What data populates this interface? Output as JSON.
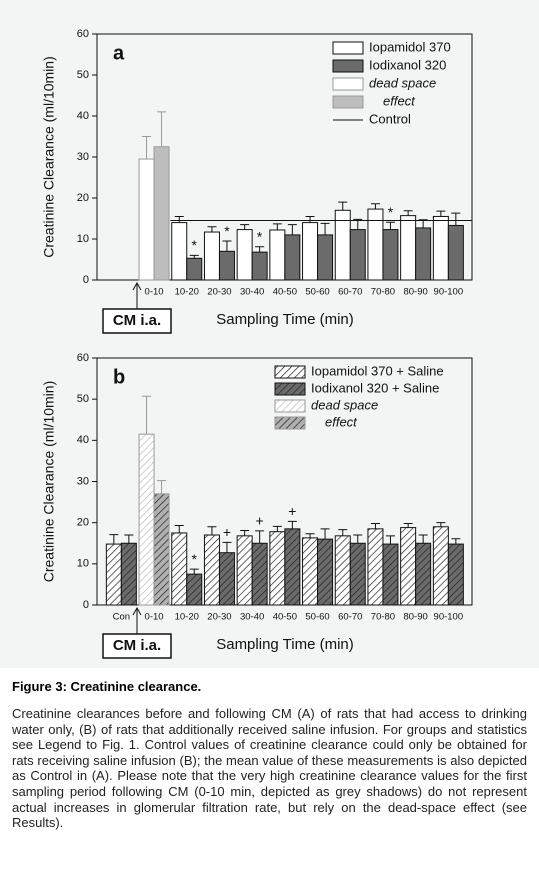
{
  "figure": {
    "title": "Figure 3: Creatinine clearance.",
    "caption": "Creatinine clearances before and following CM (A) of rats that had access to drinking water only, (B) of rats that additionally received saline infusion. For groups and statistics see Legend to Fig. 1. Control values of creatinine clearance could only be obtained for rats receiving saline infusion (B); the mean value of these measurements is also depicted as Control in (A). Please note that the very high creatinine clearance values for the first sampling period following CM (0-10 min, depicted as grey shadows) do not represent actual increases in glomerular filtration rate, but rely on the dead-space effect (see Results)."
  },
  "chart_data": [
    {
      "type": "bar",
      "panel": "a",
      "hatch": false,
      "xlabel": "Sampling Time (min)",
      "ylabel": "Creatinine Clearance (ml/10min)",
      "annotation": "CM i.a.",
      "categories": [
        null,
        "0-10",
        "10-20",
        "20-30",
        "30-40",
        "40-50",
        "50-60",
        "60-70",
        "70-80",
        "80-90",
        "90-100"
      ],
      "ylim": [
        0,
        60
      ],
      "yticks": [
        0,
        10,
        20,
        30,
        40,
        50,
        60
      ],
      "series": [
        {
          "name": "Iopamidol 370",
          "color": "#ffffff",
          "values": [
            null,
            null,
            14,
            11.7,
            12.3,
            12.2,
            14,
            17,
            17.3,
            15.7,
            15.5
          ],
          "errors": [
            null,
            null,
            1.5,
            1.3,
            1.2,
            1.5,
            1.5,
            2,
            1.3,
            1.2,
            1.3
          ],
          "marks": [
            null,
            null,
            null,
            null,
            null,
            null,
            null,
            null,
            null,
            null,
            null
          ]
        },
        {
          "name": "Iodixanol 320",
          "color": "#6b6b6b",
          "values": [
            null,
            null,
            5.3,
            7,
            6.8,
            11,
            11,
            12.3,
            12.3,
            12.7,
            13.3
          ],
          "errors": [
            null,
            null,
            0.7,
            2.5,
            1.3,
            2.5,
            2.8,
            2.5,
            1.8,
            2,
            3
          ],
          "marks": [
            null,
            null,
            "*",
            "*",
            "*",
            null,
            null,
            null,
            "*",
            null,
            null
          ]
        },
        {
          "name": "dead space",
          "color": "#ffffff",
          "values": [
            null,
            29.5,
            null,
            null,
            null,
            null,
            null,
            null,
            null,
            null,
            null
          ],
          "errors": [
            null,
            5.5,
            null,
            null,
            null,
            null,
            null,
            null,
            null,
            null,
            null
          ],
          "marks": [
            null,
            null,
            null,
            null,
            null,
            null,
            null,
            null,
            null,
            null,
            null
          ]
        },
        {
          "name": "effect",
          "color": "#bdbdbd",
          "values": [
            null,
            32.5,
            null,
            null,
            null,
            null,
            null,
            null,
            null,
            null,
            null
          ],
          "errors": [
            null,
            8.5,
            null,
            null,
            null,
            null,
            null,
            null,
            null,
            null,
            null
          ],
          "marks": [
            null,
            null,
            null,
            null,
            null,
            null,
            null,
            null,
            null,
            null,
            null
          ]
        }
      ],
      "control": {
        "name": "Control",
        "value": 14.5
      }
    },
    {
      "type": "bar",
      "panel": "b",
      "hatch": true,
      "xlabel": "Sampling Time (min)",
      "ylabel": "Creatinine Clearance (ml/10min)",
      "annotation": "CM i.a.",
      "categories": [
        "Con",
        "0-10",
        "10-20",
        "20-30",
        "30-40",
        "40-50",
        "50-60",
        "60-70",
        "70-80",
        "80-90",
        "90-100"
      ],
      "ylim": [
        0,
        60
      ],
      "yticks": [
        0,
        10,
        20,
        30,
        40,
        50,
        60
      ],
      "series": [
        {
          "name": "Iopamidol 370 + Saline",
          "color": "#ffffff",
          "values": [
            14.8,
            null,
            17.5,
            17,
            16.8,
            17.8,
            16.3,
            16.8,
            18.5,
            18.8,
            19
          ],
          "errors": [
            2.3,
            null,
            1.8,
            2,
            1.3,
            1.3,
            1,
            1.5,
            1.3,
            1,
            1
          ],
          "marks": [
            null,
            null,
            null,
            null,
            null,
            null,
            null,
            null,
            null,
            null,
            null
          ]
        },
        {
          "name": "Iodixanol 320 + Saline",
          "color": "#6b6b6b",
          "values": [
            15,
            null,
            7.5,
            12.7,
            15,
            18.5,
            16,
            15,
            14.8,
            15,
            14.8
          ],
          "errors": [
            2,
            null,
            1.2,
            2.5,
            3,
            1.8,
            2.5,
            2,
            2,
            2,
            1.3
          ],
          "marks": [
            null,
            null,
            "*",
            "+",
            "+",
            "+",
            null,
            null,
            null,
            null,
            null
          ]
        },
        {
          "name": "dead space",
          "color": "#ffffff",
          "values": [
            null,
            41.5,
            null,
            null,
            null,
            null,
            null,
            null,
            null,
            null,
            null
          ],
          "errors": [
            null,
            9.2,
            null,
            null,
            null,
            null,
            null,
            null,
            null,
            null,
            null
          ],
          "marks": [
            null,
            null,
            null,
            null,
            null,
            null,
            null,
            null,
            null,
            null,
            null
          ]
        },
        {
          "name": "effect",
          "color": "#b0b0b0",
          "values": [
            null,
            27,
            null,
            null,
            null,
            null,
            null,
            null,
            null,
            null,
            null
          ],
          "errors": [
            null,
            3.2,
            null,
            null,
            null,
            null,
            null,
            null,
            null,
            null,
            null
          ],
          "marks": [
            null,
            null,
            null,
            null,
            null,
            null,
            null,
            null,
            null,
            null,
            null
          ]
        }
      ]
    }
  ]
}
